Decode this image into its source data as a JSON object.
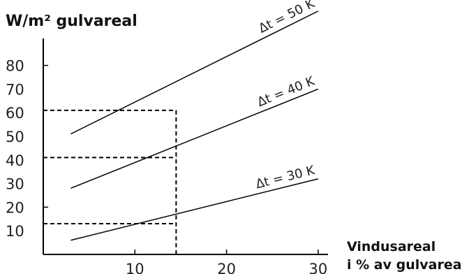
{
  "chart_data": {
    "type": "line",
    "ylabel": "W/m² gulvareal",
    "xlabel": [
      "Vindusareal",
      "i % av gulvareal"
    ],
    "xlim": [
      0,
      30
    ],
    "ylim": [
      0,
      90
    ],
    "x_ticks": [
      10,
      20,
      30
    ],
    "y_ticks": [
      10,
      20,
      30,
      40,
      50,
      60,
      70,
      80
    ],
    "grid": false,
    "series": [
      {
        "name": "Δt = 50 K",
        "x": [
          3,
          30
        ],
        "y": [
          51,
          103
        ]
      },
      {
        "name": "Δt = 40 K",
        "x": [
          3,
          30
        ],
        "y": [
          28,
          70
        ]
      },
      {
        "name": "Δt = 30 K",
        "x": [
          3,
          30
        ],
        "y": [
          6,
          32
        ]
      }
    ],
    "reference_lines": {
      "x": 14.5,
      "y": [
        13,
        41,
        61
      ]
    }
  }
}
